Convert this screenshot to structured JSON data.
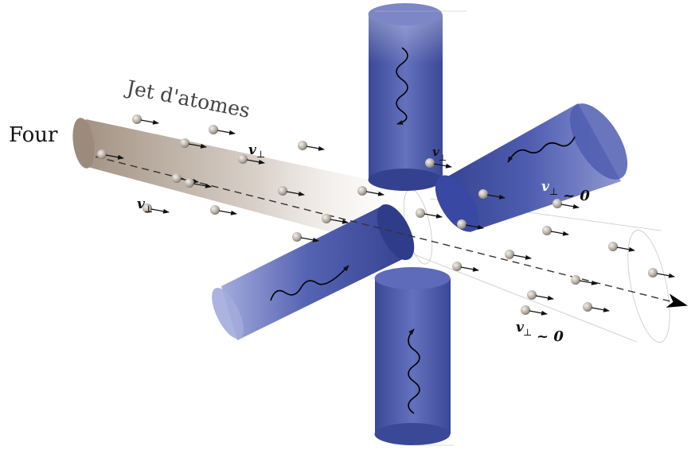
{
  "labels": {
    "oven": "Four",
    "jet": "Jet d'atomes",
    "v_symbol": "v",
    "perp_symbol": "⊥",
    "approx_zero": "~ 0"
  },
  "colors": {
    "laser_dark": "#3b4a9e",
    "laser_mid": "#5866b6",
    "laser_light": "#9aa3d6",
    "jet_dark": "#9c8a7a",
    "jet_light": "#ffffff",
    "atom": "#b9b1a8",
    "line": "#222222"
  },
  "icons": {
    "oven": "oven-label",
    "arrow": "velocity-arrow-icon",
    "wave": "photon-wave-icon"
  }
}
